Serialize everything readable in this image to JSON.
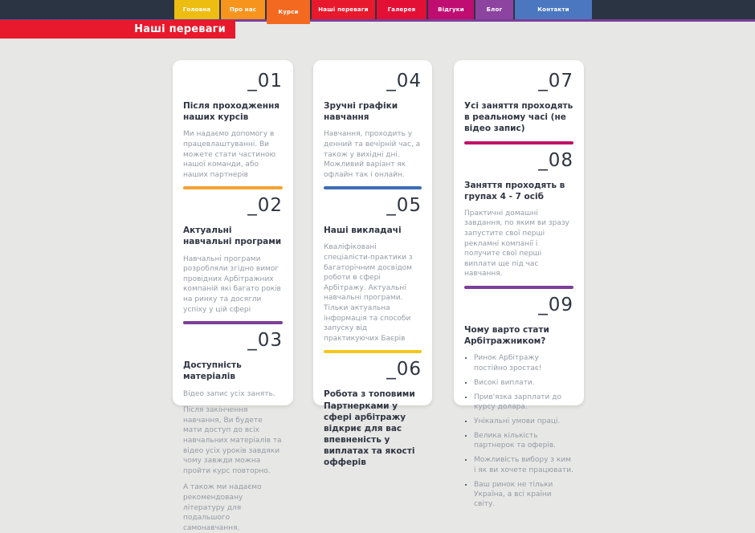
{
  "theme": {
    "topbar_bg": "#2b3442",
    "topbar_stripe": "#7a3f98",
    "page_bg": "#e7e7e5",
    "card_bg": "#ffffff",
    "heading_color": "#2f3542",
    "number_color": "#2f3542",
    "body_color": "#959ba4",
    "banner_bg": "#e8192c",
    "banner_text_color": "#ffffff"
  },
  "nav": {
    "items": [
      {
        "label": "Головна",
        "color": "#eebd12",
        "active": false
      },
      {
        "label": "Про нас",
        "color": "#f7941d",
        "active": false
      },
      {
        "label": "Курси",
        "color": "#f2691f",
        "active": true
      },
      {
        "label": "Наші переваги",
        "color": "#e8192c",
        "active": false
      },
      {
        "label": "Галерея",
        "color": "#e40f35",
        "active": false
      },
      {
        "label": "Відгуки",
        "color": "#c00d72",
        "active": false
      },
      {
        "label": "Блог",
        "color": "#8c44a0",
        "active": false
      },
      {
        "label": "Контакти",
        "color": "#4a77c0",
        "active": false
      }
    ]
  },
  "banner": {
    "label": "Наші переваги"
  },
  "cards": [
    {
      "sections": [
        {
          "number": "_01",
          "heading": "Після проходження наших курсів",
          "paragraphs": [
            "Ми надаємо допомогу в працевлаштуванні. Ви можете стати частиною нашої команди, або наших партнерів"
          ],
          "bar_color": "#f5a233"
        },
        {
          "number": "_02",
          "heading": "Актуальні навчальні програми",
          "paragraphs": [
            "Навчальні програми розробляли згідно вимог провідних Арбітражних компаній які багато років на ринку та досягли успіху у цій сфері"
          ],
          "bar_color": "#7d3f98"
        },
        {
          "number": "_03",
          "heading": "Доступність матеріалів",
          "paragraphs": [
            "Відео запис усіх занять.",
            "Після закінчення навчання, Ви будете мати доступ до всіх навчальних матеріалів та відео усіх уроків завдяки чому завжди можна пройти курс повторно.",
            "А також ми надаємо рекомендовану літературу для подальшого самонавчання."
          ]
        }
      ]
    },
    {
      "sections": [
        {
          "number": "_04",
          "heading": "Зручні графіки навчання",
          "paragraphs": [
            "Навчання, проходить у денний та вечірній час, а також у вихідні дні. Можливий варіант як офлайн так і онлайн."
          ],
          "bar_color": "#3d6eb4"
        },
        {
          "number": "_05",
          "heading": "Наші викладачі",
          "paragraphs": [
            "Кваліфіковані спеціалісти-практики з багаторічним досвідом роботи в сфері Арбітражу. Актуальні навчальні програми. Тільки актуальна інформація та способи запуску від практикуючих Баєрів"
          ],
          "bar_color": "#f3c71d"
        },
        {
          "number": "_06",
          "heading": "Робота з топовими Партнерками у сфері арбітражу відкриє для вас впевненість у виплатах та якості офферів",
          "paragraphs": []
        }
      ]
    },
    {
      "sections": [
        {
          "number": "_07",
          "heading": "Усі заняття проходять в реальному часі (не відео запис)",
          "paragraphs": [],
          "bar_color": "#c01366"
        },
        {
          "number": "_08",
          "heading": "Заняття проходять в групах 4 - 7 осіб",
          "paragraphs": [
            "Практичні домашні завдання, по яким ви зразу запустите свої перші рекламні компанії і получите свої перші виплати ще під час навчання."
          ],
          "bar_color": "#7d3f98"
        },
        {
          "number": "_09",
          "heading": "Чому варто стати Арбітражником?",
          "bullets": [
            "Ринок Арбітражу постійно зростає!",
            "Високі виплати.",
            "Прив'язка зарплати до курсу долара.",
            "Унікальні умови праці.",
            "Велика кількість партнерок та оферів.",
            "Можливість вибору з ким і як ви хочете працювати.",
            "Ваш ринок не тільки Україна, а всі країни світу."
          ]
        }
      ]
    }
  ]
}
